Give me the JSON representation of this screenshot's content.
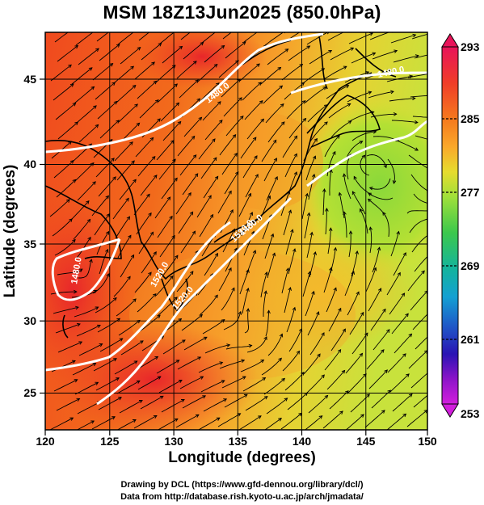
{
  "title": "MSM 18Z13Jun2025 (850.0hPa)",
  "x_axis": {
    "label": "Longitude (degrees)",
    "ticks": [
      "120",
      "125",
      "130",
      "135",
      "140",
      "145",
      "150"
    ]
  },
  "y_axis": {
    "label": "Latitude  (degrees)",
    "ticks": [
      "25",
      "30",
      "35",
      "40",
      "45"
    ]
  },
  "colorbar": {
    "ticks": [
      "293",
      "285",
      "277",
      "269",
      "261",
      "253"
    ],
    "colors": [
      "#e8145a",
      "#f03c28",
      "#f5781e",
      "#faa028",
      "#f5c828",
      "#d2e632",
      "#82dc3c",
      "#32c85a",
      "#14b4a0",
      "#1496d2",
      "#1e50c8",
      "#2814b4",
      "#8c14c8",
      "#d21edc"
    ]
  },
  "contour_labels": [
    "1480.0",
    "1480.0",
    "1520.0",
    "1520.0",
    "1520.0",
    "1480.0",
    "1480.0"
  ],
  "credits": [
    "Drawing by DCL (https://www.gfd-dennou.org/library/dcl/)",
    "Data from http://database.rish.kyoto-u.ac.jp/arch/jmadata/"
  ]
}
